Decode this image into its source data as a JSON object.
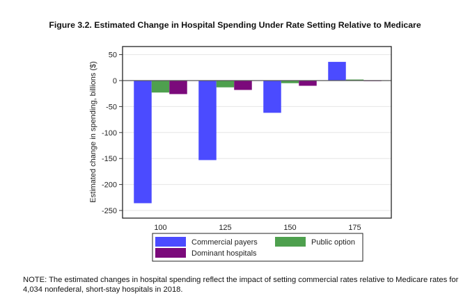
{
  "chart_data": {
    "type": "bar",
    "title": "Figure 3.2. Estimated Change in Hospital Spending Under Rate Setting Relative to Medicare",
    "xlabel": "",
    "ylabel": "Estimated change in spending, billions ($)",
    "categories": [
      "100",
      "125",
      "150",
      "175"
    ],
    "series": [
      {
        "name": "Commercial payers",
        "color": "#4b4bff",
        "values": [
          -236,
          -153,
          -62,
          36
        ]
      },
      {
        "name": "Public option",
        "color": "#4ea04e",
        "values": [
          -23,
          -13,
          -5,
          2
        ]
      },
      {
        "name": "Dominant hospitals",
        "color": "#7b0a7b",
        "values": [
          -26,
          -18,
          -10,
          -1
        ]
      }
    ],
    "ylim": [
      -260,
      65
    ],
    "yticks": [
      50,
      0,
      -50,
      -100,
      -150,
      -200,
      -250
    ],
    "grid": true,
    "legend_position": "bottom"
  },
  "note": "NOTE: The estimated changes in hospital spending reflect the impact of setting commercial rates relative to Medicare rates for 4,034 nonfederal, short-stay hospitals in 2018."
}
